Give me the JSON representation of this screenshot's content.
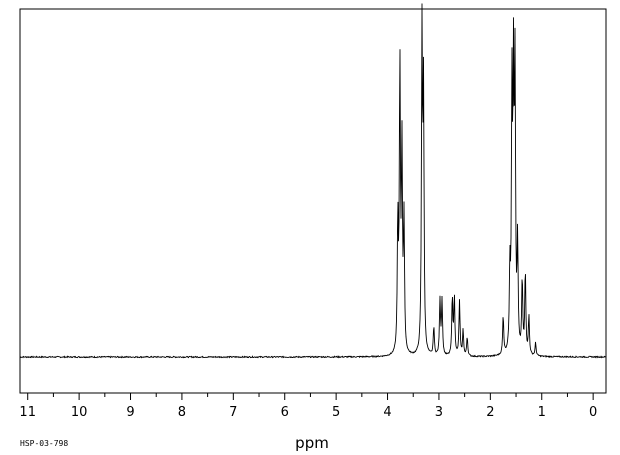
{
  "chart_data": {
    "type": "line",
    "title": "",
    "xlabel": "ppm",
    "ylabel": "",
    "xlim": [
      11.15,
      -0.25
    ],
    "ylim": [
      -0.12,
      1.0
    ],
    "x_reversed": true,
    "xticks": [
      "11",
      "10",
      "9",
      "8",
      "7",
      "6",
      "5",
      "4",
      "3",
      "2",
      "1",
      "0"
    ],
    "grid": false,
    "legend": "none",
    "line_color": "#000000",
    "series": [
      {
        "peaks": [
          {
            "x": 3.8,
            "y": 0.4
          },
          {
            "x": 3.76,
            "y": 0.88
          },
          {
            "x": 3.72,
            "y": 0.62
          },
          {
            "x": 3.68,
            "y": 0.4
          },
          {
            "x": 3.33,
            "y": 0.97
          },
          {
            "x": 3.3,
            "y": 0.78
          },
          {
            "x": 3.1,
            "y": 0.09
          },
          {
            "x": 2.98,
            "y": 0.17
          },
          {
            "x": 2.94,
            "y": 0.17
          },
          {
            "x": 2.74,
            "y": 0.18
          },
          {
            "x": 2.7,
            "y": 0.18
          },
          {
            "x": 2.6,
            "y": 0.17
          },
          {
            "x": 2.53,
            "y": 0.08
          },
          {
            "x": 2.45,
            "y": 0.06
          },
          {
            "x": 1.75,
            "y": 0.12
          },
          {
            "x": 1.62,
            "y": 0.24
          },
          {
            "x": 1.58,
            "y": 0.78
          },
          {
            "x": 1.55,
            "y": 0.8
          },
          {
            "x": 1.52,
            "y": 0.84
          },
          {
            "x": 1.47,
            "y": 0.33
          },
          {
            "x": 1.38,
            "y": 0.23
          },
          {
            "x": 1.32,
            "y": 0.26
          },
          {
            "x": 1.25,
            "y": 0.12
          },
          {
            "x": 1.12,
            "y": 0.04
          }
        ]
      }
    ]
  },
  "footer": {
    "code": "HSP-03-798"
  }
}
